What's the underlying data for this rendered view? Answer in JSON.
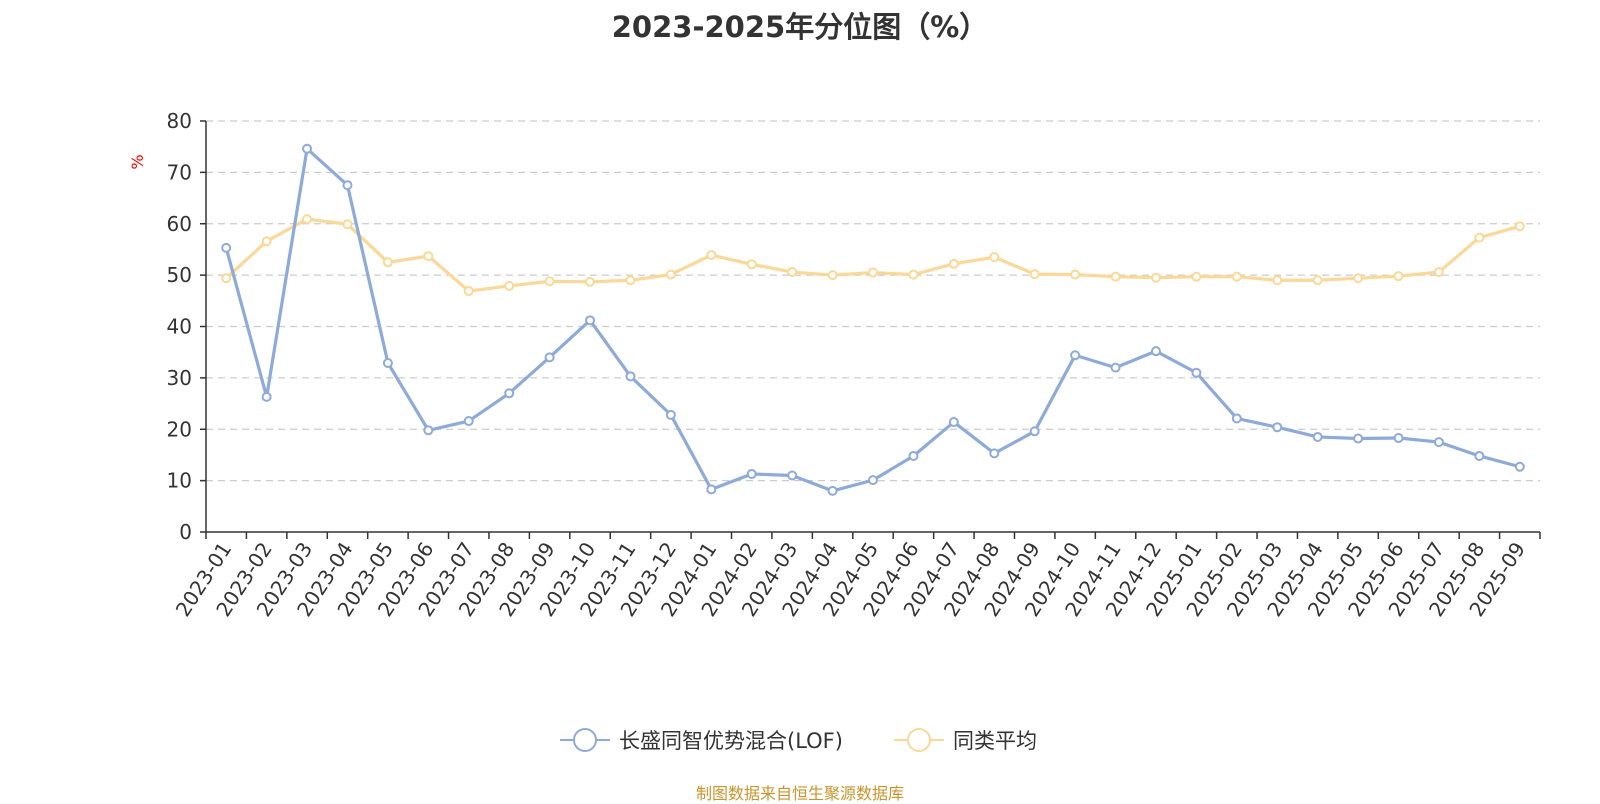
{
  "source_note": "制图数据来自恒生聚源数据库",
  "chart_data": {
    "type": "line",
    "title": "2023-2025年分位图（%）",
    "ylabel": "%",
    "xlabel": "",
    "ylim": [
      0,
      80
    ],
    "yticks": [
      0,
      10,
      20,
      30,
      40,
      50,
      60,
      70,
      80
    ],
    "grid": true,
    "legend_position": "bottom",
    "categories": [
      "2023-01",
      "2023-02",
      "2023-03",
      "2023-04",
      "2023-05",
      "2023-06",
      "2023-07",
      "2023-08",
      "2023-09",
      "2023-10",
      "2023-11",
      "2023-12",
      "2024-01",
      "2024-02",
      "2024-03",
      "2024-04",
      "2024-05",
      "2024-06",
      "2024-07",
      "2024-08",
      "2024-09",
      "2024-10",
      "2024-11",
      "2024-12",
      "2025-01",
      "2025-02",
      "2025-03",
      "2025-04",
      "2025-05",
      "2025-06",
      "2025-07",
      "2025-08",
      "2025-09"
    ],
    "series": [
      {
        "name": "长盛同智优势混合(LOF)",
        "color": "#8eaad8",
        "values": [
          55.3,
          26.3,
          74.6,
          67.5,
          32.9,
          19.8,
          21.6,
          27.0,
          34.0,
          41.2,
          30.3,
          22.8,
          8.3,
          11.3,
          11.0,
          8.0,
          10.1,
          14.8,
          21.4,
          15.3,
          19.6,
          34.4,
          32.0,
          35.2,
          31.0,
          22.1,
          20.4,
          18.5,
          18.2,
          18.3,
          17.5,
          14.8,
          12.7
        ]
      },
      {
        "name": "同类平均",
        "color": "#fad898",
        "values": [
          49.4,
          56.6,
          60.9,
          59.9,
          52.5,
          53.7,
          46.9,
          47.9,
          48.8,
          48.7,
          49.0,
          50.1,
          53.9,
          52.1,
          50.6,
          50.0,
          50.5,
          50.1,
          52.2,
          53.5,
          50.2,
          50.1,
          49.7,
          49.5,
          49.7,
          49.7,
          49.0,
          49.0,
          49.4,
          49.8,
          50.6,
          57.3,
          59.5
        ]
      }
    ]
  }
}
